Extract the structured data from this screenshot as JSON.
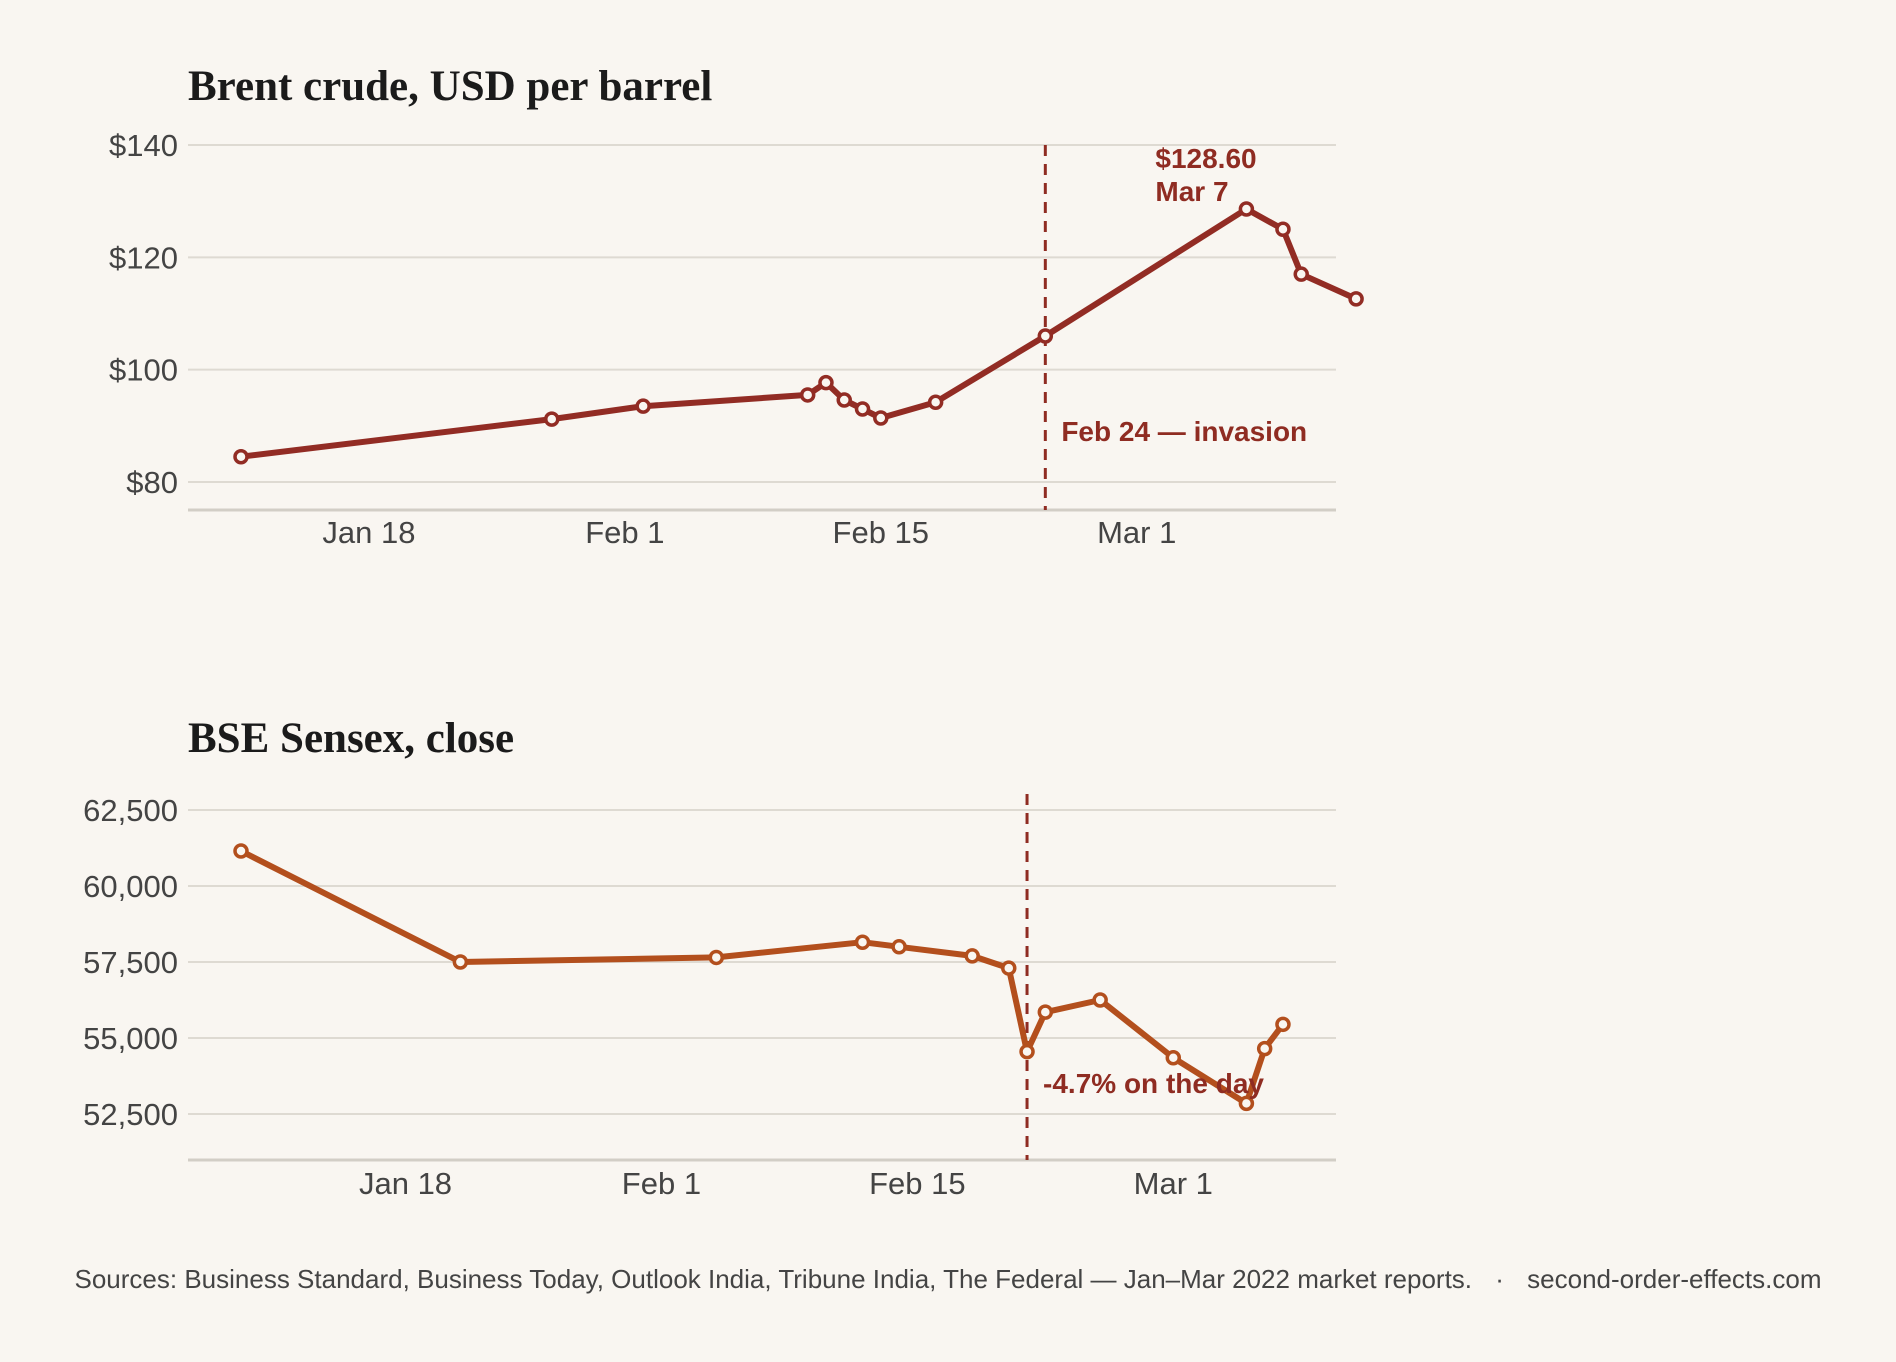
{
  "colors": {
    "background": "#f9f6f1",
    "brent_line": "#922c24",
    "sensex_line": "#b34f1d",
    "annotation": "#8f2c22",
    "gridline": "#dedad2",
    "axis": "#d2cec6"
  },
  "footer": {
    "sources": "Sources: Business Standard, Business Today, Outlook India, Tribune India, The Federal — Jan–Mar 2022 market reports.",
    "separator": "·",
    "site": "second-order-effects.com"
  },
  "chart_data": [
    {
      "type": "line",
      "title": "Brent crude, USD per barrel",
      "xlabel": "",
      "ylabel": "",
      "ylim": [
        75,
        140
      ],
      "yticks": [
        80,
        100,
        120,
        140
      ],
      "ytick_labels": [
        "$80",
        "$100",
        "$120",
        "$140"
      ],
      "xticks": [
        "2022-01-18",
        "2022-02-01",
        "2022-02-15",
        "2022-03-01"
      ],
      "xtick_labels": [
        "Jan 18",
        "Feb 1",
        "Feb 15",
        "Mar 1"
      ],
      "grid": true,
      "series": [
        {
          "x": [
            "2022-01-11",
            "2022-01-28",
            "2022-02-02",
            "2022-02-11",
            "2022-02-12",
            "2022-02-13",
            "2022-02-14",
            "2022-02-15",
            "2022-02-18",
            "2022-02-24",
            "2022-03-07",
            "2022-03-09",
            "2022-03-10",
            "2022-03-13"
          ],
          "values": [
            84.5,
            91.2,
            93.5,
            95.5,
            97.7,
            94.6,
            93.0,
            91.4,
            94.2,
            106.0,
            128.6,
            125.0,
            117.0,
            112.6
          ]
        }
      ],
      "annotations": [
        {
          "x": "2022-02-24",
          "kind": "vline",
          "label": "Feb 24 — invasion"
        },
        {
          "x": "2022-03-07",
          "kind": "callout",
          "lines": [
            "$128.60",
            "Mar 7"
          ]
        }
      ]
    },
    {
      "type": "line",
      "title": "BSE Sensex, close",
      "xlabel": "",
      "ylabel": "",
      "ylim": [
        51000,
        63000
      ],
      "yticks": [
        52500,
        55000,
        57500,
        60000,
        62500
      ],
      "ytick_labels": [
        "52,500",
        "55,000",
        "57,500",
        "60,000",
        "62,500"
      ],
      "xticks": [
        "2022-01-18",
        "2022-02-01",
        "2022-02-15",
        "2022-03-01"
      ],
      "xtick_labels": [
        "Jan 18",
        "Feb 1",
        "Feb 15",
        "Mar 1"
      ],
      "grid": true,
      "series": [
        {
          "x": [
            "2022-01-09",
            "2022-01-21",
            "2022-02-04",
            "2022-02-12",
            "2022-02-14",
            "2022-02-18",
            "2022-02-20",
            "2022-02-21",
            "2022-02-22",
            "2022-02-25",
            "2022-03-01",
            "2022-03-05",
            "2022-03-06",
            "2022-03-07"
          ],
          "values": [
            61150,
            57500,
            57650,
            58150,
            58000,
            57700,
            57300,
            54550,
            55850,
            56250,
            54350,
            52850,
            54650,
            55450
          ]
        }
      ],
      "annotations": [
        {
          "x": "2022-02-21",
          "kind": "vline",
          "label": "-4.7% on the day"
        }
      ]
    }
  ]
}
